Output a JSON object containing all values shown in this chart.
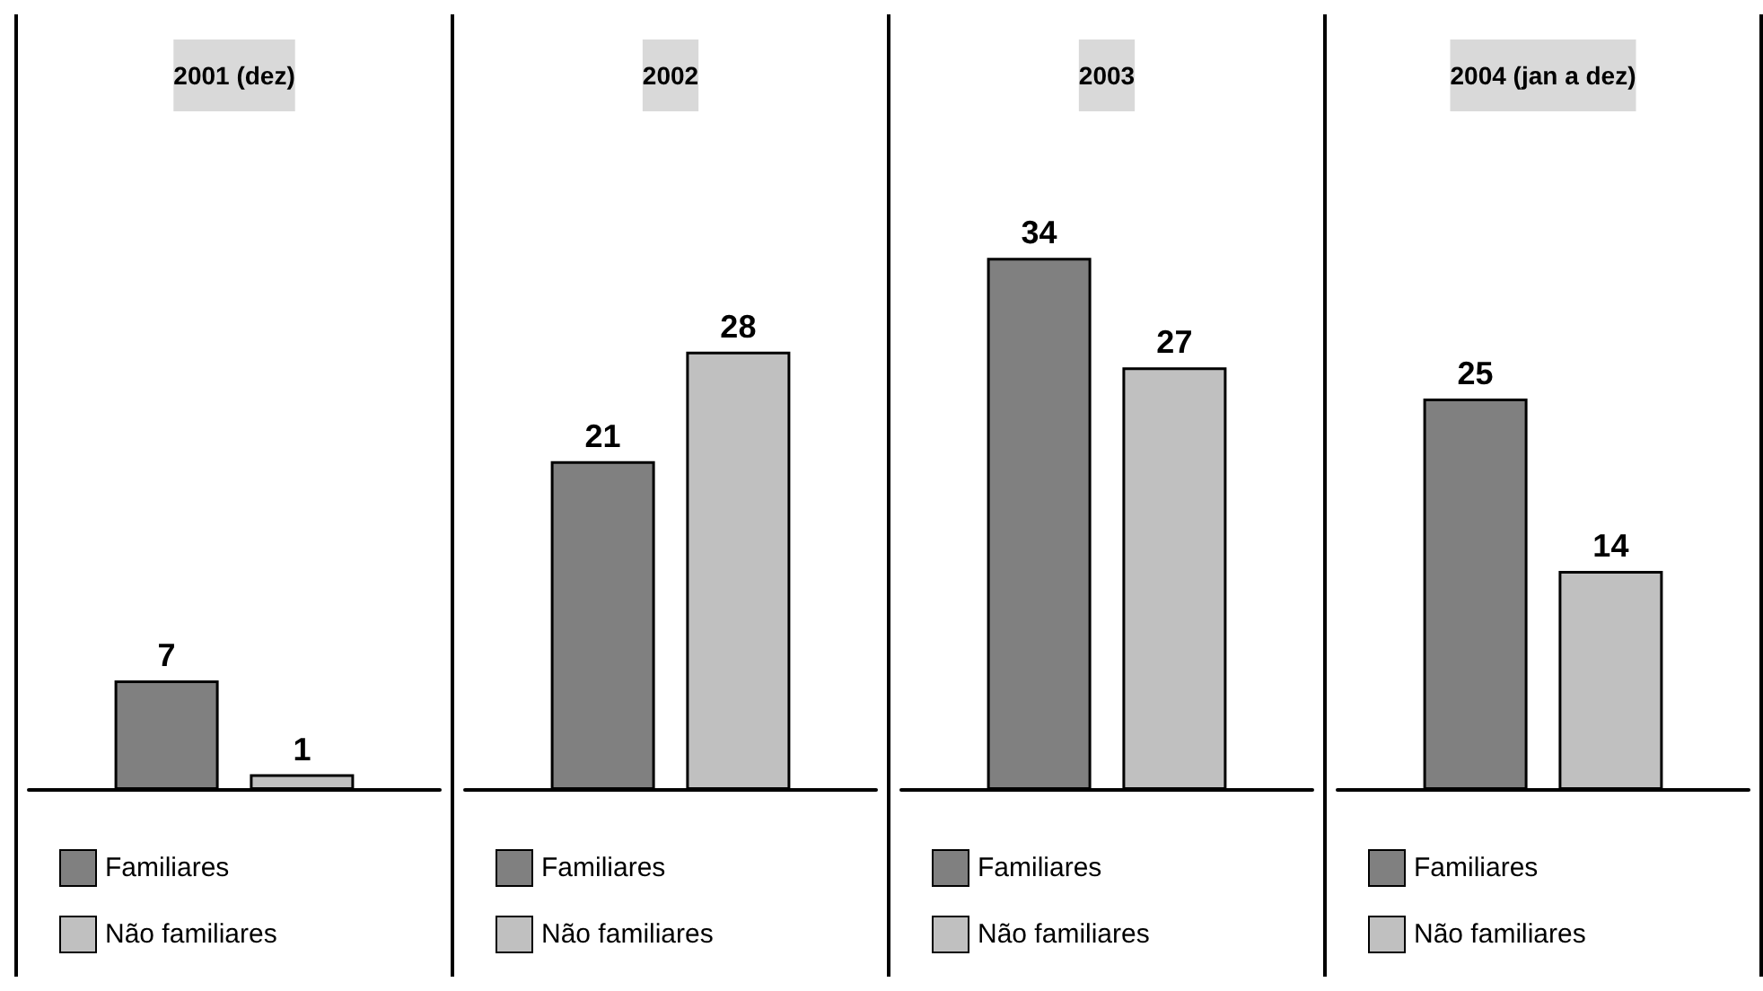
{
  "chart_data": [
    {
      "type": "bar",
      "title": "2001 (dez)",
      "categories": [
        null
      ],
      "series": [
        {
          "name": "Familiares",
          "color": "#808080",
          "values": [
            7
          ]
        },
        {
          "name": "Não familiares",
          "color": "#c0c0c0",
          "values": [
            1
          ]
        }
      ],
      "data_labels": true,
      "legend": "bottom"
    },
    {
      "type": "bar",
      "title": "2002",
      "categories": [
        null
      ],
      "series": [
        {
          "name": "Familiares",
          "color": "#808080",
          "values": [
            21
          ]
        },
        {
          "name": "Não familiares",
          "color": "#c0c0c0",
          "values": [
            28
          ]
        }
      ],
      "data_labels": true,
      "legend": "bottom"
    },
    {
      "type": "bar",
      "title": "2003",
      "categories": [
        null
      ],
      "series": [
        {
          "name": "Familiares",
          "color": "#808080",
          "values": [
            34
          ]
        },
        {
          "name": "Não familiares",
          "color": "#c0c0c0",
          "values": [
            27
          ]
        }
      ],
      "data_labels": true,
      "legend": "bottom"
    },
    {
      "type": "bar",
      "title": "2004 (jan a dez)",
      "categories": [
        null
      ],
      "series": [
        {
          "name": "Familiares",
          "color": "#808080",
          "values": [
            25
          ]
        },
        {
          "name": "Não familiares",
          "color": "#c0c0c0",
          "values": [
            14
          ]
        }
      ],
      "data_labels": true,
      "legend": "bottom"
    }
  ]
}
